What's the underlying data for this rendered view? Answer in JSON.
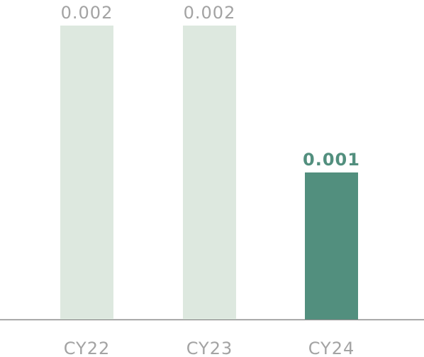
{
  "chart_data": {
    "type": "bar",
    "categories": [
      "CY22",
      "CY23",
      "CY24"
    ],
    "values": [
      0.002,
      0.002,
      0.001
    ],
    "colors": [
      "#dde8df",
      "#dde8df",
      "#528f7e"
    ],
    "label_colors": [
      "#a3a3a3",
      "#a3a3a3",
      "#528f7e"
    ]
  }
}
